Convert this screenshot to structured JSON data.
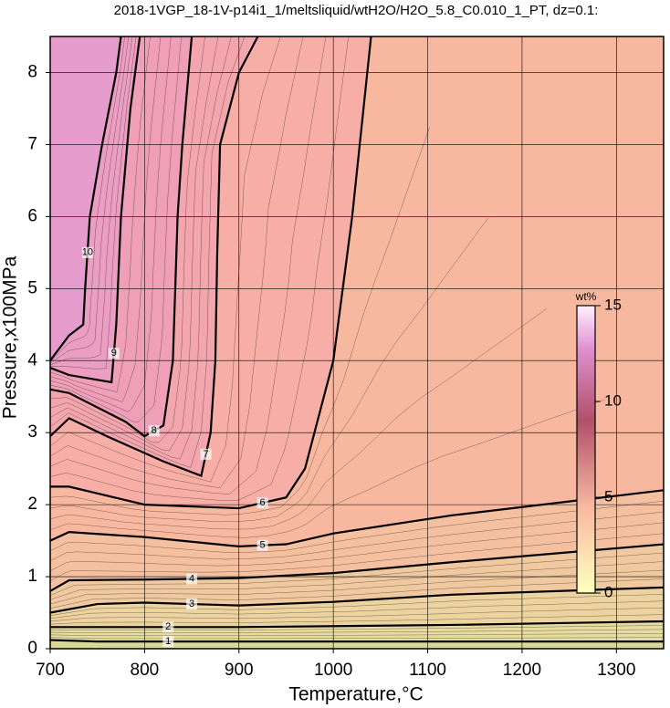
{
  "chart_data": {
    "type": "contour",
    "title": "2018-1VGP_18-1V-p14i1_1/meltsliquid/wtH2O/H2O_5.8_C0.010_1_PT, dz=0.1:",
    "x_label": "Temperature,°C",
    "y_label": "Pressure,x100MPa",
    "xlim": [
      700,
      1350
    ],
    "ylim": [
      0,
      8.5
    ],
    "xticks": [
      700,
      800,
      900,
      1000,
      1100,
      1200,
      1300
    ],
    "yticks": [
      0,
      1,
      2,
      3,
      4,
      5,
      6,
      7,
      8
    ],
    "grid": true,
    "colorbar": {
      "label": "wt%",
      "lim": [
        0,
        15
      ],
      "ticks": [
        0,
        5,
        10,
        15
      ]
    },
    "contours": [
      {
        "level": 1,
        "color": "#e6dba0",
        "x": [
          700,
          750,
          900,
          1100,
          1350
        ],
        "y": [
          0.12,
          0.1,
          0.1,
          0.1,
          0.1
        ]
      },
      {
        "level": 2,
        "color": "#ecd3a0",
        "x": [
          700,
          750,
          900,
          1125,
          1350
        ],
        "y": [
          0.3,
          0.3,
          0.3,
          0.33,
          0.38
        ]
      },
      {
        "level": 3,
        "color": "#f0c9a0",
        "x": [
          700,
          750,
          800,
          900,
          1000,
          1125,
          1350
        ],
        "y": [
          0.5,
          0.62,
          0.64,
          0.6,
          0.65,
          0.75,
          0.85
        ]
      },
      {
        "level": 4,
        "color": "#f4c0a0",
        "x": [
          700,
          720,
          800,
          900,
          1000,
          1125,
          1350
        ],
        "y": [
          0.8,
          0.95,
          0.96,
          0.98,
          1.05,
          1.2,
          1.45
        ]
      },
      {
        "level": 5,
        "color": "#f8b8a0",
        "x": [
          700,
          720,
          800,
          900,
          950,
          1000,
          1125,
          1350
        ],
        "y": [
          1.5,
          1.62,
          1.55,
          1.42,
          1.45,
          1.6,
          1.85,
          2.2
        ]
      },
      {
        "level": 6,
        "color": "#f7aea6",
        "x": [
          700,
          720,
          800,
          900,
          950,
          970,
          1000,
          1020,
          1040
        ],
        "y": [
          2.25,
          2.25,
          2.0,
          1.95,
          2.1,
          2.5,
          4.0,
          6.0,
          8.5
        ]
      },
      {
        "level": 7,
        "color": "#f3a6ae",
        "x": [
          700,
          720,
          760,
          820,
          860,
          870,
          875,
          877,
          880,
          900,
          920
        ],
        "y": [
          2.95,
          3.2,
          2.95,
          2.6,
          2.4,
          3.0,
          4.0,
          5.5,
          7.0,
          8.0,
          8.5
        ]
      },
      {
        "level": 8,
        "color": "#efa0b8",
        "x": [
          700,
          720,
          780,
          800,
          820,
          830,
          835,
          840,
          850
        ],
        "y": [
          3.6,
          3.55,
          3.15,
          2.95,
          3.1,
          4.0,
          6.0,
          7.0,
          8.5
        ]
      },
      {
        "level": 9,
        "color": "#eb9ec2",
        "x": [
          700,
          720,
          765,
          770,
          775,
          785,
          795
        ],
        "y": [
          3.9,
          3.8,
          3.7,
          4.5,
          6.0,
          7.5,
          8.5
        ]
      },
      {
        "level": 10,
        "color": "#e69ccd",
        "x": [
          700,
          720,
          735,
          737,
          742,
          755,
          770,
          775
        ],
        "y": [
          4.0,
          4.35,
          4.5,
          5.0,
          6.0,
          7.0,
          8.0,
          8.5
        ]
      }
    ]
  }
}
